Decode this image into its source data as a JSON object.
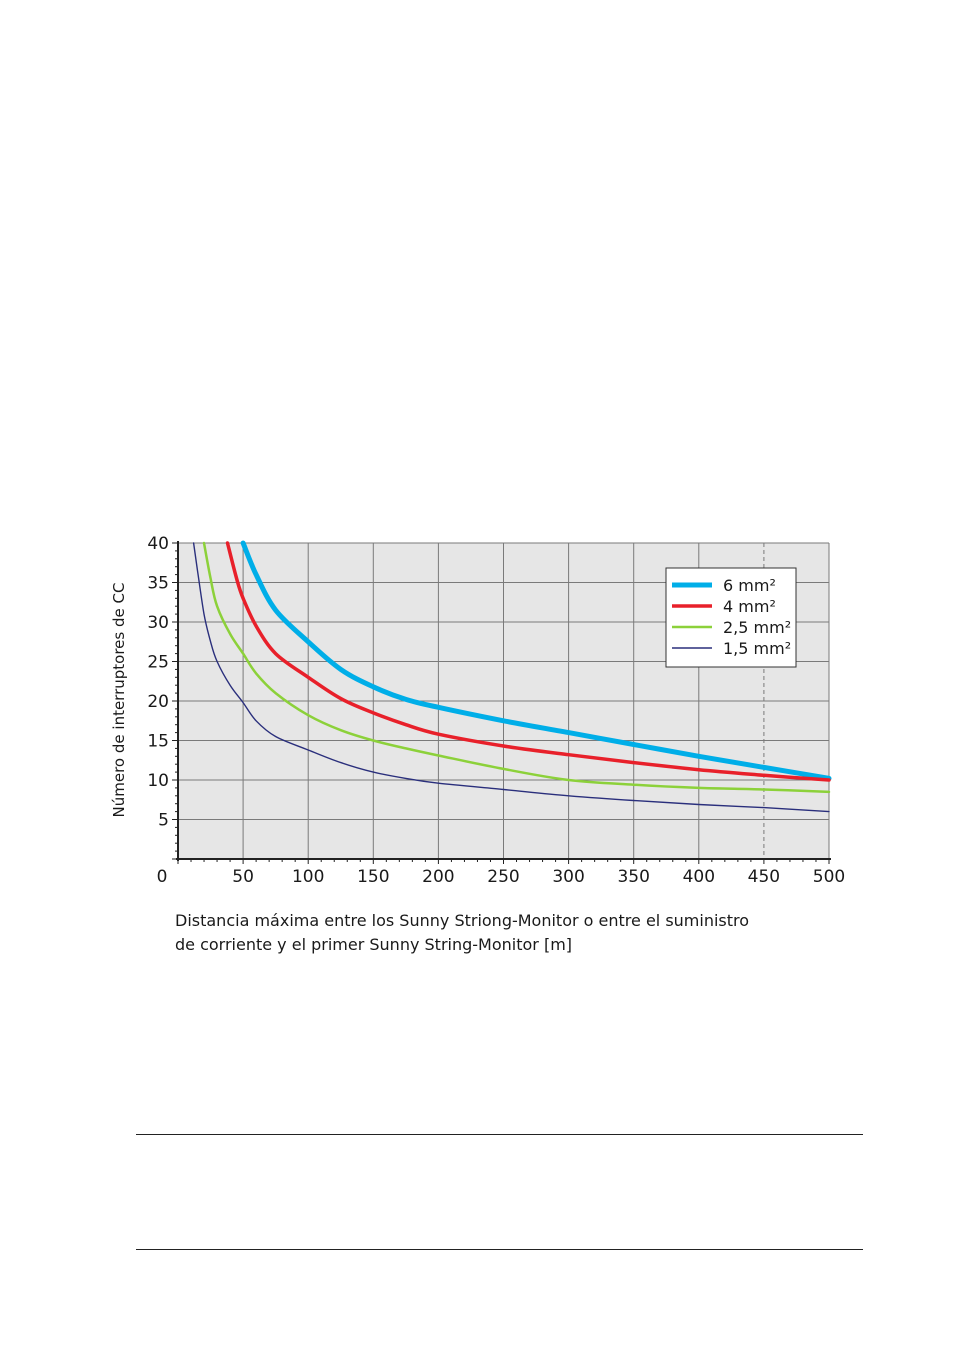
{
  "chart_data": {
    "type": "line",
    "xlabel_line1": "Distancia máxima entre los Sunny Striong-Monitor o entre el suministro",
    "xlabel_line2": "de corriente y el primer Sunny String-Monitor  [m]",
    "ylabel": "Número de interruptores de CC",
    "xlim": [
      0,
      500
    ],
    "ylim": [
      0,
      40
    ],
    "x_ticks": [
      "0",
      "50",
      "100",
      "150",
      "200",
      "250",
      "300",
      "350",
      "400",
      "450",
      "500"
    ],
    "y_ticks": [
      "5",
      "10",
      "15",
      "20",
      "25",
      "30",
      "35",
      "40"
    ],
    "grid": true,
    "legend_position": "top-right",
    "series": [
      {
        "name": "6 mm²",
        "color": "#00aee8",
        "x": [
          50,
          60,
          75,
          100,
          125,
          150,
          175,
          200,
          250,
          300,
          350,
          400,
          450,
          500
        ],
        "y": [
          40,
          36,
          31.5,
          27.5,
          24,
          21.8,
          20.2,
          19.2,
          17.5,
          16,
          14.5,
          13,
          11.6,
          10.2
        ]
      },
      {
        "name": "4 mm²",
        "color": "#e8202a",
        "x": [
          38,
          45,
          50,
          60,
          75,
          100,
          125,
          150,
          175,
          200,
          250,
          300,
          350,
          400,
          450,
          500
        ],
        "y": [
          40,
          35.5,
          33,
          29.5,
          26,
          23,
          20.3,
          18.5,
          17,
          15.8,
          14.3,
          13.2,
          12.2,
          11.3,
          10.6,
          10
        ]
      },
      {
        "name": "2,5 mm²",
        "color": "#8cd13a",
        "x": [
          20,
          25,
          30,
          40,
          50,
          60,
          75,
          100,
          125,
          150,
          175,
          200,
          250,
          300,
          350,
          400,
          450,
          500
        ],
        "y": [
          40,
          35.5,
          32,
          28.5,
          26,
          23.5,
          21,
          18.2,
          16.3,
          15,
          14,
          13.1,
          11.4,
          10,
          9.4,
          9,
          8.8,
          8.5
        ]
      },
      {
        "name": "1,5 mm²",
        "color": "#2a2f7c",
        "x": [
          12,
          15,
          20,
          25,
          30,
          40,
          50,
          60,
          75,
          100,
          125,
          150,
          175,
          200,
          250,
          300,
          350,
          400,
          450,
          500
        ],
        "y": [
          40,
          36.5,
          31,
          27.5,
          25,
          22,
          19.8,
          17.5,
          15.5,
          13.8,
          12.2,
          11,
          10.2,
          9.6,
          8.8,
          8,
          7.4,
          6.9,
          6.5,
          6
        ]
      }
    ]
  }
}
